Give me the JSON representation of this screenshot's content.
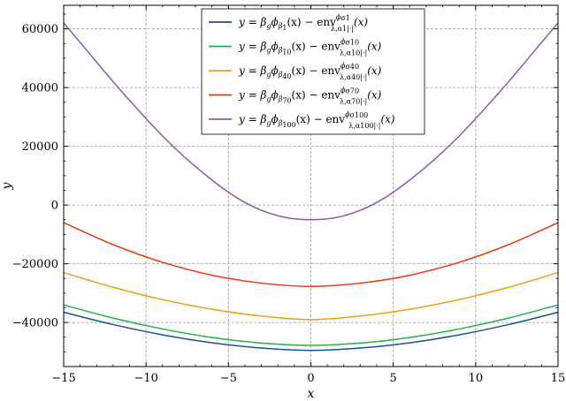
{
  "chart_data": {
    "type": "line",
    "xlabel": "x",
    "ylabel": "y",
    "xlim": [
      -15,
      15
    ],
    "ylim": [
      -55000,
      68000
    ],
    "xticks": [
      -15,
      -10,
      -5,
      0,
      5,
      10,
      15
    ],
    "xtick_labels": [
      "−15",
      "−10",
      "−5",
      "0",
      "5",
      "10",
      "15"
    ],
    "yticks": [
      -40000,
      -20000,
      0,
      20000,
      40000,
      60000
    ],
    "ytick_labels": [
      "−40000",
      "−20000",
      "0",
      "20000",
      "40000",
      "60000"
    ],
    "grid": true,
    "legend_position": "top-center",
    "series": [
      {
        "color": "#1f4e99",
        "legend": {
          "pre": "y = β",
          "sub1": "g",
          "mid": "ϕ",
          "sub2": "β",
          "sub3": "1",
          "post1": "(x) − env",
          "sup": "ϕ",
          "supsub": "σ1",
          "envsub": "λ,α1|·|",
          "post2": "(x)"
        },
        "x": [
          -15,
          -12,
          -9,
          -6,
          -3,
          0,
          3,
          6,
          9,
          12,
          15
        ],
        "y": [
          -36500,
          -40700,
          -44200,
          -46900,
          -48700,
          -49500,
          -48700,
          -46900,
          -44200,
          -40700,
          -36500
        ]
      },
      {
        "color": "#21b050",
        "legend": {
          "pre": "y = β",
          "sub1": "g",
          "mid": "ϕ",
          "sub2": "β",
          "sub3": "10",
          "post1": "(x) − env",
          "sup": "ϕ",
          "supsub": "σ10",
          "envsub": "λ,α10|·|",
          "post2": "(x)"
        },
        "x": [
          -15,
          -12,
          -9,
          -6,
          -3,
          0,
          3,
          6,
          9,
          12,
          15
        ],
        "y": [
          -34000,
          -38500,
          -42200,
          -45100,
          -47000,
          -47800,
          -47000,
          -45100,
          -42200,
          -38500,
          -34000
        ]
      },
      {
        "color": "#f39c12",
        "legend": {
          "pre": "y = β",
          "sub1": "g",
          "mid": "ϕ",
          "sub2": "β",
          "sub3": "40",
          "post1": "(x) − env",
          "sup": "ϕ",
          "supsub": "σ40",
          "envsub": "λ,α40|·|",
          "post2": "(x)"
        },
        "x": [
          -15,
          -12,
          -9,
          -6,
          -3,
          0,
          3,
          6,
          9,
          12,
          15
        ],
        "y": [
          -23000,
          -28000,
          -32200,
          -35500,
          -37800,
          -39000,
          -37800,
          -35500,
          -32200,
          -28000,
          -23000
        ]
      },
      {
        "color": "#e8380d",
        "legend": {
          "pre": "y = β",
          "sub1": "g",
          "mid": "ϕ",
          "sub2": "β",
          "sub3": "70",
          "post1": "(x) − env",
          "sup": "ϕ",
          "supsub": "σ70",
          "envsub": "λ,α70|·|",
          "post2": "(x)"
        },
        "x": [
          -15,
          -12,
          -9,
          -6,
          -3,
          0,
          3,
          6,
          9,
          12,
          15
        ],
        "y": [
          -6000,
          -13500,
          -19500,
          -23900,
          -26600,
          -27700,
          -26600,
          -23900,
          -19500,
          -13500,
          -6000
        ]
      },
      {
        "color": "#8a5ca8",
        "legend": {
          "pre": "y = β",
          "sub1": "g",
          "mid": "ϕ",
          "sub2": "β",
          "sub3": "100",
          "post1": "(x) − env",
          "sup": "ϕ",
          "supsub": "σ100",
          "envsub": "λ,α100|·|",
          "post2": "(x)"
        },
        "x": [
          -15,
          -13.5,
          -12,
          -10.5,
          -9,
          -7.5,
          -6,
          -4.5,
          -3,
          -1.5,
          0,
          1.5,
          3,
          4.5,
          6,
          7.5,
          9,
          10.5,
          12,
          13.5,
          15
        ],
        "y": [
          62000,
          52000,
          42000,
          32500,
          23500,
          15500,
          8500,
          2500,
          -1800,
          -4300,
          -5000,
          -4300,
          -1800,
          2500,
          8500,
          15500,
          23500,
          32500,
          42000,
          52000,
          62000
        ]
      }
    ]
  }
}
